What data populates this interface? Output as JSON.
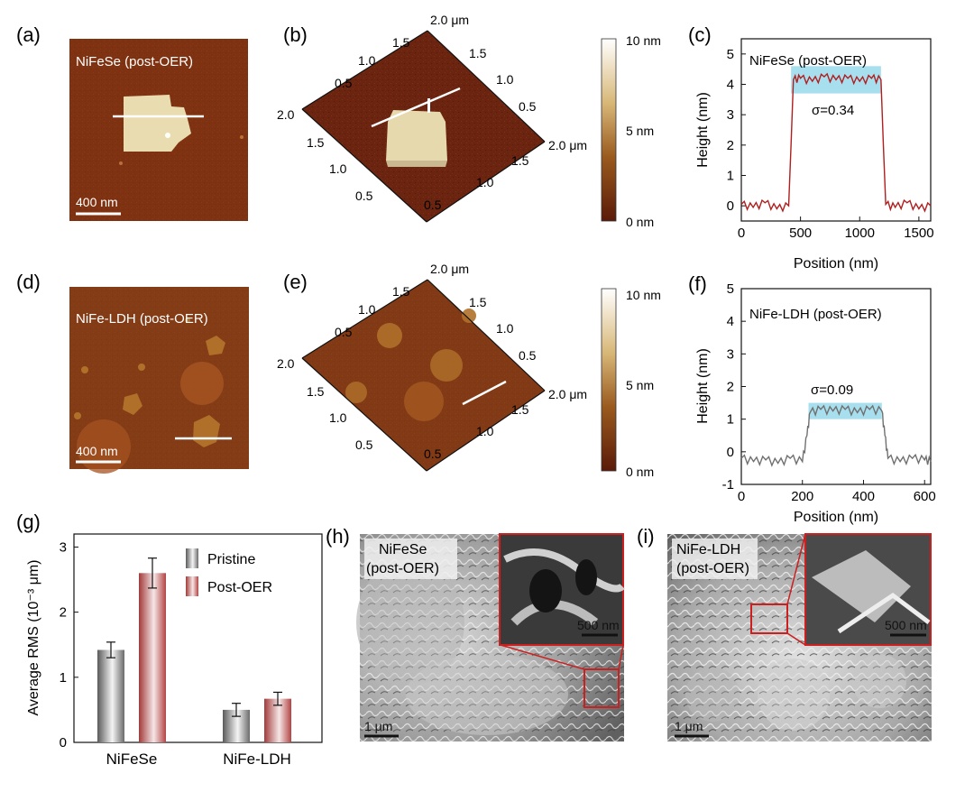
{
  "panels": {
    "a": {
      "label": "(a)",
      "title": "NiFeSe (post-OER)",
      "scalebar": "400 nm"
    },
    "b": {
      "label": "(b)",
      "axis_ticks": [
        "0.5",
        "1.0",
        "1.5",
        "2.0"
      ],
      "axis_end": "2.0 μm"
    },
    "c": {
      "label": "(c)",
      "title": "NiFeSe (post-OER)",
      "sigma": "σ=0.34",
      "xlabel": "Position (nm)",
      "ylabel": "Height (nm)"
    },
    "d": {
      "label": "(d)",
      "title": "NiFe-LDH (post-OER)",
      "scalebar": "400 nm"
    },
    "e": {
      "label": "(e)",
      "axis_ticks": [
        "0.5",
        "1.0",
        "1.5",
        "2.0"
      ],
      "axis_end": "2.0 μm"
    },
    "f": {
      "label": "(f)",
      "title": "NiFe-LDH (post-OER)",
      "sigma": "σ=0.09",
      "xlabel": "Position (nm)",
      "ylabel": "Height (nm)"
    },
    "g": {
      "label": "(g)"
    },
    "h": {
      "label": "(h)",
      "title_line1": "NiFeSe",
      "title_line2": "(post-OER)",
      "scalebar": "1 μm",
      "inset_scalebar": "500 nm"
    },
    "i": {
      "label": "(i)",
      "title_line1": "NiFe-LDH",
      "title_line2": "(post-OER)",
      "scalebar": "1 μm",
      "inset_scalebar": "500 nm"
    }
  },
  "colorbar": {
    "top_label": "10 nm",
    "mid_label": "5 nm",
    "bottom_label": "0 nm"
  },
  "colors": {
    "afm_dark": "#5a1a08",
    "afm_mid": "#8a3a12",
    "flake": "#e8dcb0",
    "profile_red": "#b01e1e",
    "profile_gray": "#707070",
    "highlight": "#a8dfef",
    "pristine": "#7c7c7c",
    "postoer": "#b84a4a",
    "inset_border": "#cc1f1f"
  },
  "chart_data": [
    {
      "type": "line",
      "id": "c",
      "title": "NiFeSe (post-OER)",
      "xlabel": "Position (nm)",
      "ylabel": "Height (nm)",
      "xlim": [
        0,
        1600
      ],
      "ylim": [
        -0.5,
        5.5
      ],
      "xticks": [
        0,
        500,
        1000,
        1500
      ],
      "yticks": [
        0,
        1,
        2,
        3,
        4,
        5
      ],
      "series": [
        {
          "values_x": [
            0,
            100,
            200,
            300,
            400,
            420,
            440,
            500,
            600,
            700,
            800,
            900,
            1000,
            1100,
            1180,
            1200,
            1220,
            1300,
            1400,
            1500,
            1600
          ],
          "values_y": [
            0.05,
            -0.05,
            0.1,
            -0.1,
            0.0,
            2.0,
            4.15,
            4.2,
            4.1,
            4.25,
            4.15,
            4.2,
            4.1,
            4.2,
            4.15,
            2.0,
            0.05,
            -0.05,
            0.1,
            -0.1,
            0.0
          ]
        }
      ],
      "annotation": "σ=0.34"
    },
    {
      "type": "line",
      "id": "f",
      "title": "NiFe-LDH (post-OER)",
      "xlabel": "Position (nm)",
      "ylabel": "Height (nm)",
      "xlim": [
        0,
        620
      ],
      "ylim": [
        -1,
        5
      ],
      "xticks": [
        0,
        200,
        400,
        600
      ],
      "yticks": [
        -1,
        0,
        1,
        2,
        3,
        4,
        5
      ],
      "series": [
        {
          "values_x": [
            0,
            40,
            80,
            120,
            160,
            200,
            215,
            225,
            260,
            300,
            340,
            380,
            420,
            460,
            470,
            480,
            520,
            560,
            600,
            620
          ],
          "values_y": [
            -0.2,
            -0.3,
            -0.25,
            -0.35,
            -0.2,
            -0.3,
            0.5,
            1.2,
            1.3,
            1.25,
            1.3,
            1.2,
            1.3,
            1.25,
            0.5,
            -0.2,
            -0.3,
            -0.2,
            -0.25,
            -0.3
          ]
        }
      ],
      "annotation": "σ=0.09"
    },
    {
      "type": "bar",
      "id": "g",
      "categories": [
        "NiFeSe",
        "NiFe-LDH"
      ],
      "ylabel": "Average RMS (10⁻³ μm)",
      "ylim": [
        0,
        3.2
      ],
      "yticks": [
        0,
        1,
        2,
        3
      ],
      "series": [
        {
          "name": "Pristine",
          "values": [
            1.42,
            0.5
          ],
          "errors": [
            0.12,
            0.1
          ]
        },
        {
          "name": "Post-OER",
          "values": [
            2.6,
            0.67
          ],
          "errors": [
            0.23,
            0.1
          ]
        }
      ]
    }
  ]
}
